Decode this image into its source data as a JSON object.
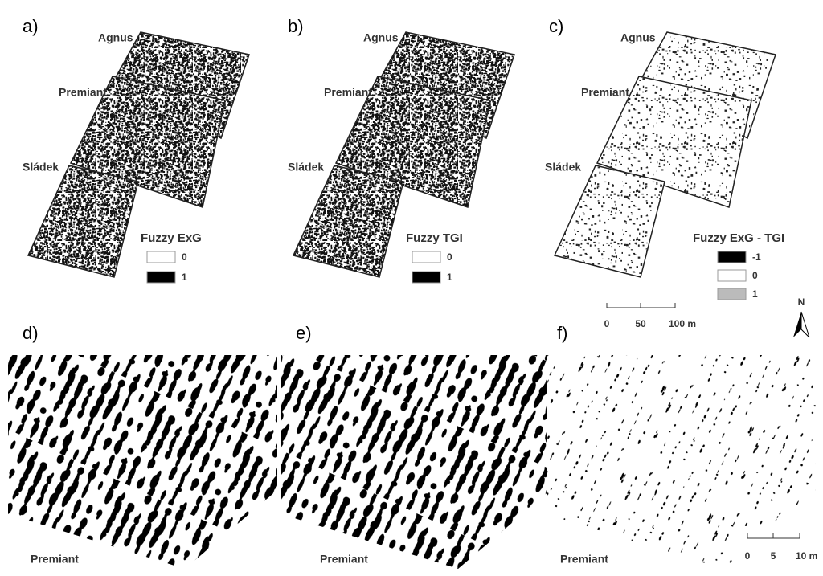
{
  "panels": [
    {
      "letter": "a)",
      "fields": [
        "Agnus",
        "Premiant",
        "Sládek"
      ],
      "legend": {
        "title": "Fuzzy ExG",
        "items": [
          "0",
          "1"
        ]
      }
    },
    {
      "letter": "b)",
      "fields": [
        "Agnus",
        "Premiant",
        "Sládek"
      ],
      "legend": {
        "title": "Fuzzy TGI",
        "items": [
          "0",
          "1"
        ]
      }
    },
    {
      "letter": "c)",
      "fields": [
        "Agnus",
        "Premiant",
        "Sládek"
      ],
      "legend": {
        "title": "Fuzzy ExG - TGI",
        "items": [
          "-1",
          "0",
          "1"
        ]
      }
    }
  ],
  "details": [
    {
      "letter": "d)",
      "field": "Premiant"
    },
    {
      "letter": "e)",
      "field": "Premiant"
    },
    {
      "letter": "f)",
      "field": "Premiant"
    }
  ],
  "scale_top": [
    "0",
    "50",
    "100 m"
  ],
  "scale_bottom": [
    "0",
    "5",
    "10 m"
  ],
  "north": "N"
}
